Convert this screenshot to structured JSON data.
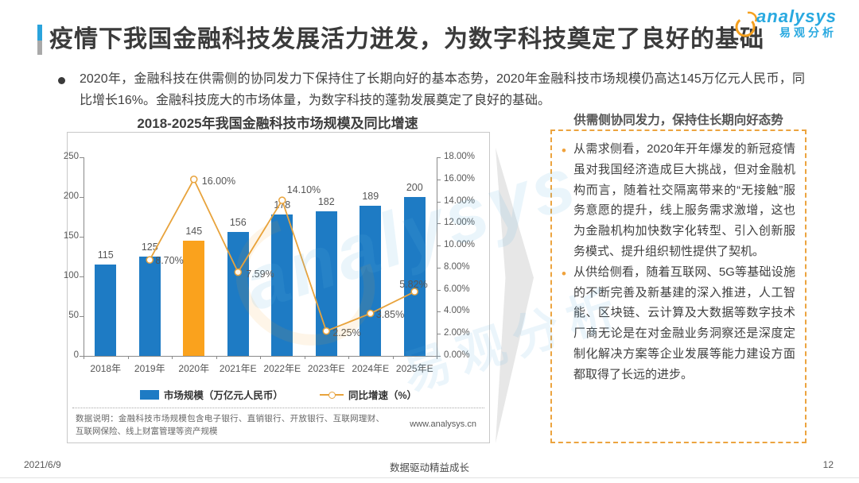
{
  "header": {
    "title": "疫情下我国金融科技发展活力迸发，为数字科技奠定了良好的基础",
    "logo": {
      "brand": "analysys",
      "brand_cn": "易观分析"
    }
  },
  "summary": {
    "text": "2020年，金融科技在供需侧的协同发力下保持住了长期向好的基本态势，2020年金融科技市场规模仍高达145万亿元人民币，同比增长16%。金融科技庞大的市场体量，为数字科技的蓬勃发展奠定了良好的基础。"
  },
  "chart_panel": {
    "title": "2018-2025年我国金融科技市场规模及同比增速",
    "footnote": "数据说明：金融科技市场规模包含电子银行、直销银行、开放银行、互联网理财、互联网保险、线上财富管理等资产规模",
    "website": "www.analysys.cn"
  },
  "chart_data": {
    "type": "bar",
    "title": "2018-2025年我国金融科技市场规模及同比增速",
    "categories": [
      "2018年",
      "2019年",
      "2020年",
      "2021年E",
      "2022年E",
      "2023年E",
      "2024年E",
      "2025年E"
    ],
    "series": [
      {
        "name": "市场规模（万亿元人民币）",
        "type": "bar",
        "axis": "left",
        "values": [
          115,
          125,
          145,
          156,
          178,
          182,
          189,
          200
        ],
        "color": "#1e7bc4",
        "highlight": {
          "index": 2,
          "color": "#faa21d"
        }
      },
      {
        "name": "同比增速（%）",
        "type": "line",
        "axis": "right",
        "values": [
          null,
          8.7,
          16.0,
          7.59,
          14.1,
          2.25,
          3.85,
          5.82
        ],
        "labels": [
          "",
          "8.70%",
          "16.00%",
          "7.59%",
          "14.10%",
          "2.25%",
          "3.85%",
          "5.82%"
        ],
        "color": "#e8a33c"
      }
    ],
    "left_axis": {
      "min": 0,
      "max": 250,
      "step": 50,
      "ticks": [
        "0",
        "50",
        "100",
        "150",
        "200",
        "250"
      ]
    },
    "right_axis": {
      "min": 0,
      "max": 18,
      "step": 2,
      "ticks": [
        "0.00%",
        "2.00%",
        "4.00%",
        "6.00%",
        "8.00%",
        "10.00%",
        "12.00%",
        "14.00%",
        "16.00%",
        "18.00%"
      ]
    },
    "legend_position": "bottom",
    "grid": false
  },
  "insight_panel": {
    "title": "供需侧协同发力，保持住长期向好态势",
    "bullets": [
      "从需求侧看，2020年开年爆发的新冠疫情虽对我国经济造成巨大挑战，但对金融机构而言，随着社交隔离带来的“无接触”服务意愿的提升，线上服务需求激增，这也为金融机构加快数字化转型、引入创新服务模式、提升组织韧性提供了契机。",
      "从供给侧看，随着互联网、5G等基础设施的不断完善及新基建的深入推进，人工智能、区块链、云计算及大数据等数字技术厂商无论是在对金融业务洞察还是深度定制化解决方案等企业发展等能力建设方面都取得了长远的进步。"
    ]
  },
  "footer": {
    "date": "2021/6/9",
    "slogan": "数据驱动精益成长",
    "page": "12"
  },
  "watermark": {
    "brand": "analysys",
    "brand_cn": "易观分析"
  },
  "colors": {
    "bar": "#1e7bc4",
    "bar_highlight": "#faa21d",
    "line": "#e8a33c",
    "accent_blue": "#29a9e0",
    "logo_orange": "#f5a01e",
    "panel_border": "#eca43f"
  }
}
